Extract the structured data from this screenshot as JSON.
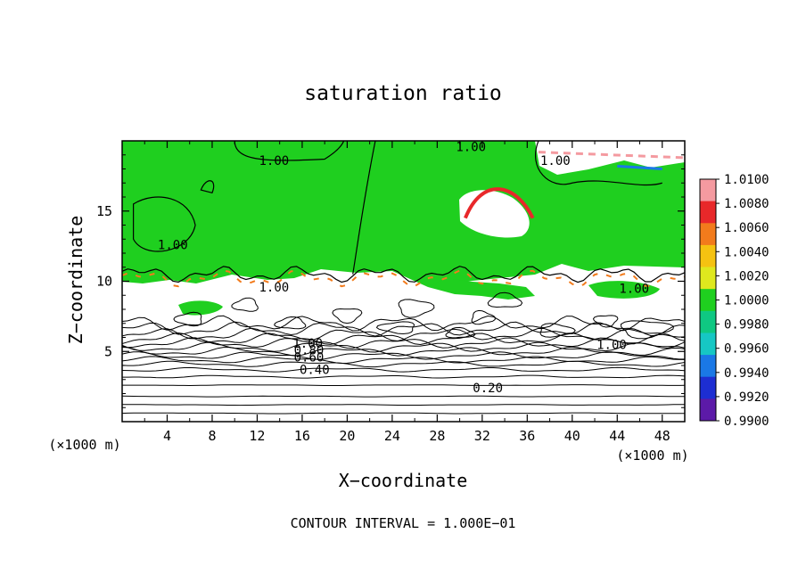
{
  "chart_data": {
    "type": "heatmap",
    "title": "saturation ratio",
    "xlabel": "X−coordinate",
    "ylabel": "Z−coordinate",
    "x_unit_label": "(×1000 m)",
    "y_unit_label": "(×1000 m)",
    "xlim": [
      0,
      50
    ],
    "ylim": [
      0,
      20
    ],
    "x_ticks": [
      4,
      8,
      12,
      16,
      20,
      24,
      28,
      32,
      36,
      40,
      44,
      48
    ],
    "y_ticks": [
      5,
      10,
      15
    ],
    "footer": "CONTOUR INTERVAL = 1.000E−01",
    "colorbar": {
      "levels": [
        "1.0100",
        "1.0080",
        "1.0060",
        "1.0040",
        "1.0020",
        "1.0000",
        "0.9980",
        "0.9960",
        "0.9940",
        "0.9920",
        "0.9900"
      ],
      "colors": [
        "#f49aa0",
        "#e8282a",
        "#f27b1c",
        "#f5c211",
        "#dfe81e",
        "#1fcf1f",
        "#0fc882",
        "#16c7c4",
        "#1a78e6",
        "#1d2ed2",
        "#5c1aa8"
      ]
    },
    "contour_labels": [
      {
        "text": "1.00",
        "x": 31,
        "y": 19.6
      },
      {
        "text": "1.00",
        "x": 13.5,
        "y": 18.6
      },
      {
        "text": "1.00",
        "x": 38.5,
        "y": 18.6
      },
      {
        "text": "1.00",
        "x": 4.5,
        "y": 12.6
      },
      {
        "text": "1.00",
        "x": 13.5,
        "y": 9.6
      },
      {
        "text": "1.00",
        "x": 45.5,
        "y": 9.5
      },
      {
        "text": "1.00",
        "x": 16.5,
        "y": 5.6
      },
      {
        "text": "0.80",
        "x": 16.6,
        "y": 5.1
      },
      {
        "text": "0.60",
        "x": 16.6,
        "y": 4.6
      },
      {
        "text": "0.40",
        "x": 17.1,
        "y": 3.7
      },
      {
        "text": "0.20",
        "x": 32.5,
        "y": 2.4
      },
      {
        "text": "1.00",
        "x": 43.5,
        "y": 5.5
      }
    ]
  }
}
